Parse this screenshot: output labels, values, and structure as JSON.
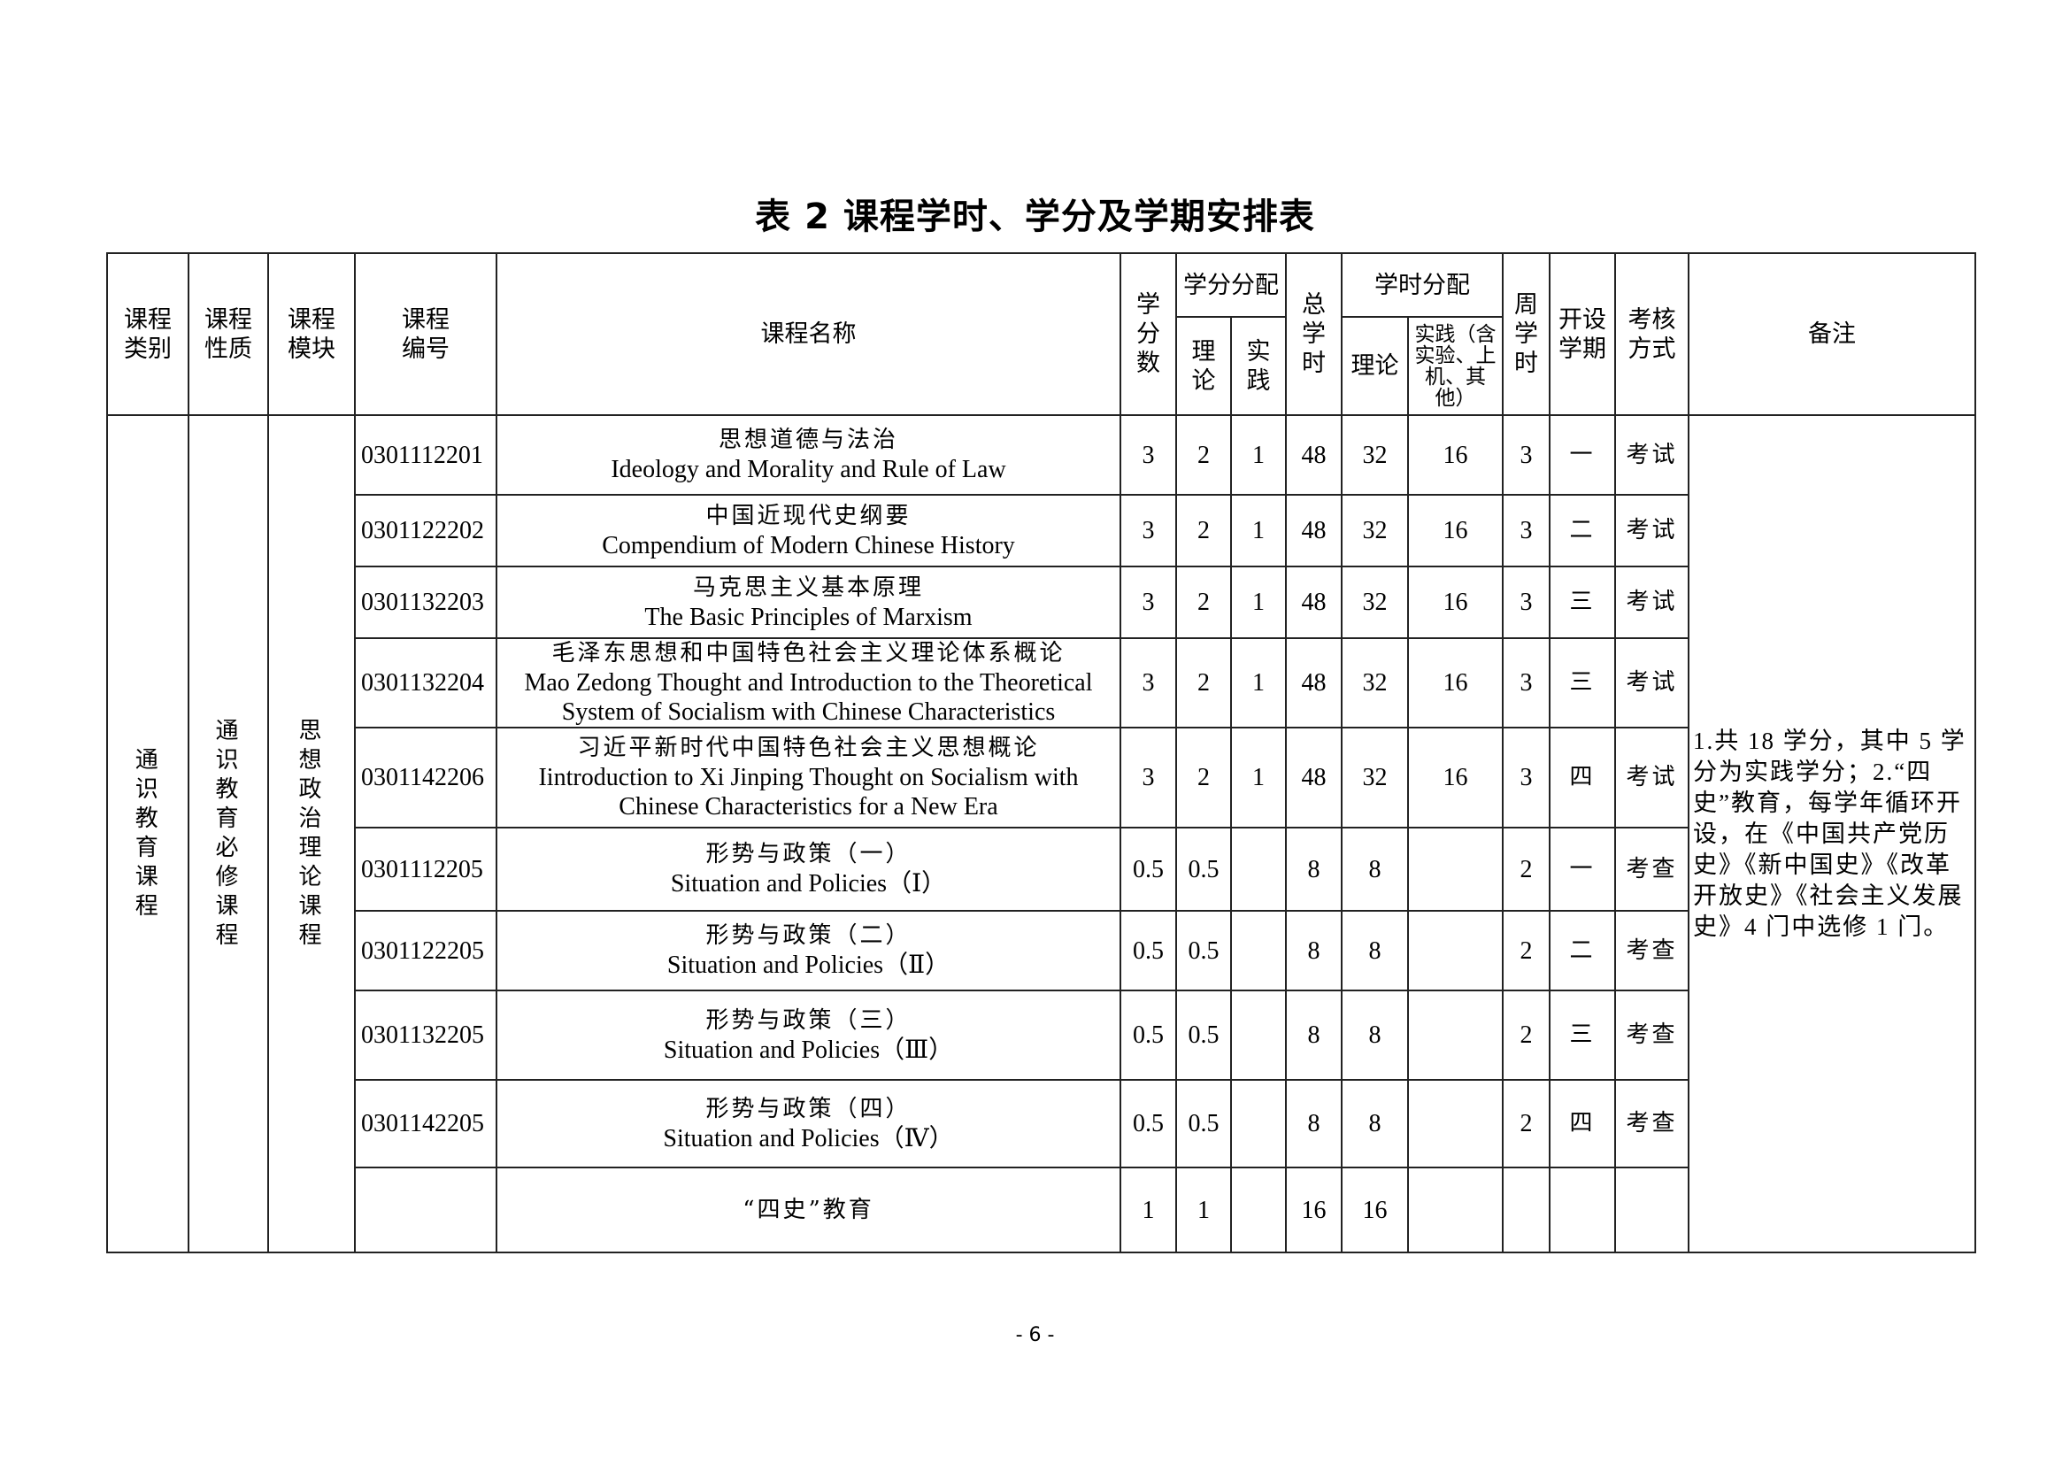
{
  "title": "表 2  课程学时、学分及学期安排表",
  "headers": {
    "category": "课程类别",
    "nature": "课程性质",
    "module": "课程模块",
    "code": "课程编号",
    "name": "课程名称",
    "credits": "学分数",
    "credit_alloc": "学分分配",
    "credit_theory": "理论",
    "credit_practice": "实践",
    "total_hours": "总学时",
    "hour_alloc": "学时分配",
    "hour_theory": "理论",
    "hour_practice": "实践（含实验、上机、其他）",
    "weekly_hours": "周学时",
    "semester": "开设学期",
    "assessment": "考核方式",
    "remarks": "备注"
  },
  "group": {
    "category": "通识教育课程",
    "nature": "通识教育必修课程",
    "module": "思想政治理论课程"
  },
  "remarks": "1.共 18 学分，其中 5 学分为实践学分；2.“四史”教育，每学年循环开设，在《中国共产党历史》《新中国史》《改革开放史》《社会主义发展史》4 门中选修 1 门。",
  "rows": [
    {
      "code": "0301112201",
      "name_cn": "思想道德与法治",
      "name_en": "Ideology and Morality and Rule of Law",
      "credits": "3",
      "ct": "2",
      "cp": "1",
      "total": "48",
      "ht": "32",
      "hp": "16",
      "weekly": "3",
      "semester": "一",
      "assessment": "考试"
    },
    {
      "code": "0301122202",
      "name_cn": "中国近现代史纲要",
      "name_en": "Compendium of Modern Chinese History",
      "credits": "3",
      "ct": "2",
      "cp": "1",
      "total": "48",
      "ht": "32",
      "hp": "16",
      "weekly": "3",
      "semester": "二",
      "assessment": "考试"
    },
    {
      "code": "0301132203",
      "name_cn": "马克思主义基本原理",
      "name_en": "The Basic Principles of Marxism",
      "credits": "3",
      "ct": "2",
      "cp": "1",
      "total": "48",
      "ht": "32",
      "hp": "16",
      "weekly": "3",
      "semester": "三",
      "assessment": "考试"
    },
    {
      "code": "0301132204",
      "name_cn": "毛泽东思想和中国特色社会主义理论体系概论",
      "name_en": "Mao Zedong Thought and Introduction to the Theoretical System of Socialism with Chinese Characteristics",
      "credits": "3",
      "ct": "2",
      "cp": "1",
      "total": "48",
      "ht": "32",
      "hp": "16",
      "weekly": "3",
      "semester": "三",
      "assessment": "考试"
    },
    {
      "code": "0301142206",
      "name_cn": "习近平新时代中国特色社会主义思想概论",
      "name_en": "Iintroduction to Xi Jinping Thought on Socialism with Chinese Characteristics for a New Era",
      "credits": "3",
      "ct": "2",
      "cp": "1",
      "total": "48",
      "ht": "32",
      "hp": "16",
      "weekly": "3",
      "semester": "四",
      "assessment": "考试"
    },
    {
      "code": "0301112205",
      "name_cn": "形势与政策（一）",
      "name_en": "Situation and Policies（Ⅰ）",
      "credits": "0.5",
      "ct": "0.5",
      "cp": "",
      "total": "8",
      "ht": "8",
      "hp": "",
      "weekly": "2",
      "semester": "一",
      "assessment": "考查"
    },
    {
      "code": "0301122205",
      "name_cn": "形势与政策（二）",
      "name_en": "Situation and Policies（Ⅱ）",
      "credits": "0.5",
      "ct": "0.5",
      "cp": "",
      "total": "8",
      "ht": "8",
      "hp": "",
      "weekly": "2",
      "semester": "二",
      "assessment": "考查"
    },
    {
      "code": "0301132205",
      "name_cn": "形势与政策（三）",
      "name_en": "Situation and Policies（Ⅲ）",
      "credits": "0.5",
      "ct": "0.5",
      "cp": "",
      "total": "8",
      "ht": "8",
      "hp": "",
      "weekly": "2",
      "semester": "三",
      "assessment": "考查"
    },
    {
      "code": "0301142205",
      "name_cn": "形势与政策（四）",
      "name_en": "Situation and Policies（Ⅳ）",
      "credits": "0.5",
      "ct": "0.5",
      "cp": "",
      "total": "8",
      "ht": "8",
      "hp": "",
      "weekly": "2",
      "semester": "四",
      "assessment": "考查"
    },
    {
      "code": "",
      "name_cn": "“四史”教育",
      "name_en": "",
      "credits": "1",
      "ct": "1",
      "cp": "",
      "total": "16",
      "ht": "16",
      "hp": "",
      "weekly": "",
      "semester": "",
      "assessment": ""
    }
  ],
  "page_number": "- 6 -"
}
